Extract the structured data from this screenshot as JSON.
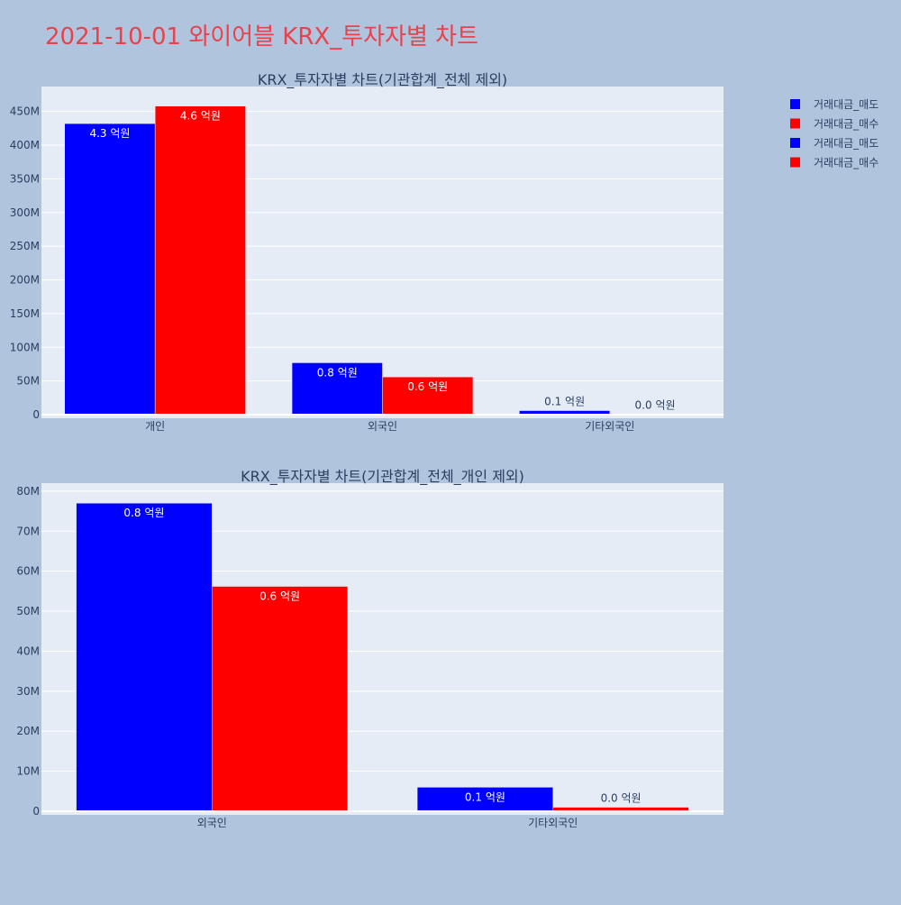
{
  "page_title": "2021-10-01 와이어블 KRX_투자자별 차트",
  "legend": [
    {
      "label": "거래대금_매도",
      "color": "#0000ff"
    },
    {
      "label": "거래대금_매수",
      "color": "#ff0000"
    },
    {
      "label": "거래대금_매도",
      "color": "#0000ff"
    },
    {
      "label": "거래대금_매수",
      "color": "#ff0000"
    }
  ],
  "colors": {
    "sell": "#0000ff",
    "buy": "#ff0000",
    "title": "#e8424c",
    "plot_bg": "#e5ecf6",
    "grid": "#ffffff",
    "text": "#2a3f5f"
  },
  "chart_data": [
    {
      "type": "bar",
      "title": "KRX_투자자별 차트(기관합계_전체 제외)",
      "categories": [
        "개인",
        "외국인",
        "기타외국인"
      ],
      "series": [
        {
          "name": "거래대금_매도",
          "values": [
            432000000,
            77000000,
            6000000
          ],
          "labels": [
            "4.3 억원",
            "0.8 억원",
            "0.1 억원"
          ]
        },
        {
          "name": "거래대금_매수",
          "values": [
            458000000,
            56000000,
            1000000
          ],
          "labels": [
            "4.6 억원",
            "0.6 억원",
            "0.0 억원"
          ]
        }
      ],
      "ylim": [
        0,
        487000000
      ],
      "yticks": [
        0,
        50000000,
        100000000,
        150000000,
        200000000,
        250000000,
        300000000,
        350000000,
        400000000,
        450000000
      ],
      "ytick_labels": [
        "0",
        "50M",
        "100M",
        "150M",
        "200M",
        "250M",
        "300M",
        "350M",
        "400M",
        "450M"
      ],
      "grid": true
    },
    {
      "type": "bar",
      "title": "KRX_투자자별 차트(기관합계_전체_개인 제외)",
      "categories": [
        "외국인",
        "기타외국인"
      ],
      "series": [
        {
          "name": "거래대금_매도",
          "values": [
            77000000,
            6000000
          ],
          "labels": [
            "0.8 억원",
            "0.1 억원"
          ]
        },
        {
          "name": "거래대금_매수",
          "values": [
            56200000,
            1000000
          ],
          "labels": [
            "0.6 억원",
            "0.0 억원"
          ]
        }
      ],
      "ylim": [
        0,
        82000000
      ],
      "yticks": [
        0,
        10000000,
        20000000,
        30000000,
        40000000,
        50000000,
        60000000,
        70000000,
        80000000
      ],
      "ytick_labels": [
        "0",
        "10M",
        "20M",
        "30M",
        "40M",
        "50M",
        "60M",
        "70M",
        "80M"
      ],
      "grid": true
    }
  ]
}
